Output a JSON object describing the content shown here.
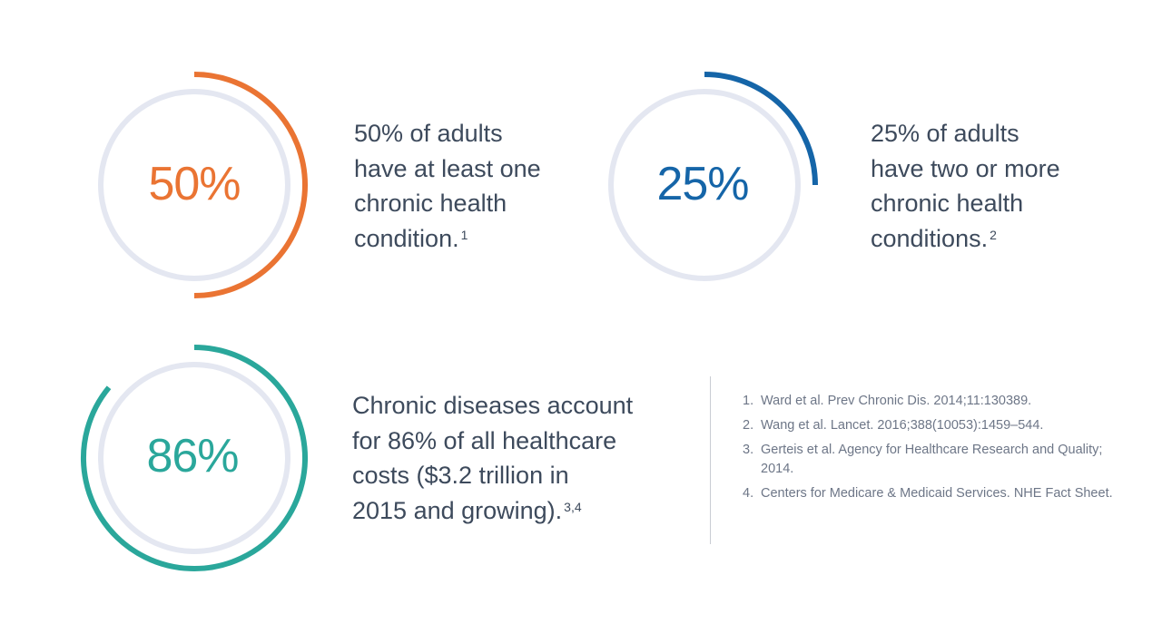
{
  "colors": {
    "track": "#e4e7f1",
    "orange": "#ea7433",
    "blue": "#1565a8",
    "teal": "#2aa79b",
    "text": "#3d4a5c",
    "refs": "#6d7687"
  },
  "stats": [
    {
      "value": "50%",
      "fraction": 0.5,
      "color": "#ea7433",
      "lines": [
        "50% of adults",
        "have at least one",
        "chronic health",
        "condition."
      ],
      "footnote": "1"
    },
    {
      "value": "25%",
      "fraction": 0.25,
      "color": "#1565a8",
      "lines": [
        "25% of adults",
        "have two or more",
        "chronic health",
        "conditions."
      ],
      "footnote": "2"
    },
    {
      "value": "86%",
      "fraction": 0.86,
      "color": "#2aa79b",
      "lines": [
        "Chronic diseases account",
        "for 86% of all healthcare",
        "costs ($3.2 trillion in",
        "2015 and growing)."
      ],
      "footnote": "3,4"
    }
  ],
  "references": [
    {
      "num": "1.",
      "text": "Ward et al. Prev Chronic Dis. 2014;11:130389."
    },
    {
      "num": "2.",
      "text": "Wang et al. Lancet. 2016;388(10053):1459–544."
    },
    {
      "num": "3.",
      "text": "Gerteis et al. Agency for Healthcare Research and Quality; 2014."
    },
    {
      "num": "4.",
      "text": "Centers for Medicare & Medicaid Services. NHE Fact Sheet."
    }
  ]
}
